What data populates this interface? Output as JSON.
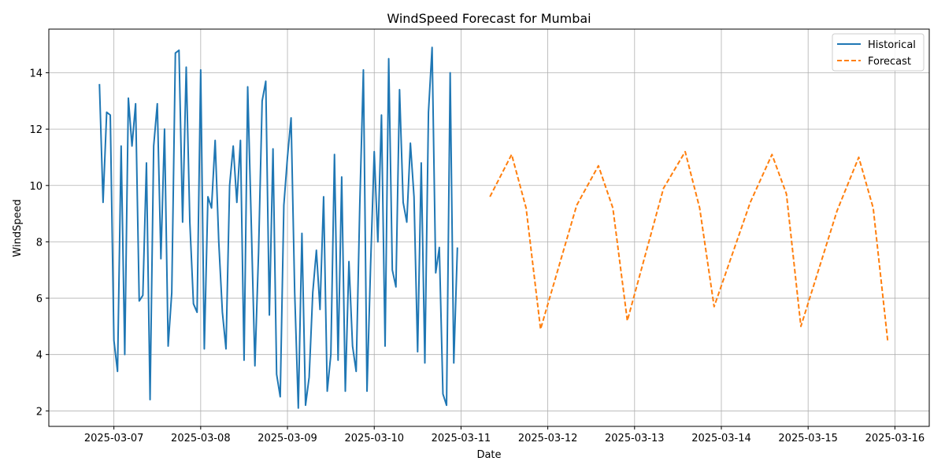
{
  "chart_data": {
    "type": "line",
    "title": "WindSpeed Forecast for Mumbai",
    "xlabel": "Date",
    "ylabel": "WindSpeed",
    "xlim": [
      "2025-03-06 06:00",
      "2025-03-16 09:30"
    ],
    "ylim": [
      1.45,
      15.55
    ],
    "yticks": [
      2,
      4,
      6,
      8,
      10,
      12,
      14
    ],
    "xticks": [
      "2025-03-07",
      "2025-03-08",
      "2025-03-09",
      "2025-03-10",
      "2025-03-11",
      "2025-03-12",
      "2025-03-13",
      "2025-03-14",
      "2025-03-15",
      "2025-03-16"
    ],
    "grid": true,
    "legend_position": "top-right",
    "series": [
      {
        "name": "Historical",
        "color": "#1f77b4",
        "style": "solid",
        "start": "2025-03-06 20:00",
        "step_hours": 1,
        "values": [
          13.6,
          9.4,
          12.6,
          12.5,
          4.5,
          3.4,
          11.4,
          4.0,
          13.1,
          11.4,
          12.9,
          5.9,
          6.1,
          10.8,
          2.4,
          11.4,
          12.9,
          7.4,
          12.0,
          4.3,
          6.2,
          14.7,
          14.8,
          8.7,
          14.2,
          8.7,
          5.8,
          5.5,
          14.1,
          4.2,
          9.6,
          9.2,
          11.6,
          8.0,
          5.5,
          4.2,
          10.0,
          11.4,
          9.4,
          11.6,
          3.8,
          13.5,
          8.6,
          3.6,
          7.6,
          13.0,
          13.7,
          5.4,
          11.3,
          3.3,
          2.5,
          9.3,
          11.0,
          12.4,
          6.2,
          2.1,
          8.3,
          2.2,
          3.2,
          6.2,
          7.7,
          5.6,
          9.6,
          2.7,
          4.0,
          11.1,
          3.8,
          10.3,
          2.7,
          7.3,
          4.3,
          3.4,
          9.3,
          14.1,
          2.7,
          7.2,
          11.2,
          8.0,
          12.5,
          4.3,
          14.5,
          7.0,
          6.4,
          13.4,
          9.4,
          8.7,
          11.5,
          9.6,
          4.1,
          10.8,
          3.7,
          12.6,
          14.9,
          6.9,
          7.8,
          2.6,
          2.2,
          14.0,
          3.7,
          7.8
        ]
      },
      {
        "name": "Forecast",
        "color": "#ff7f0e",
        "style": "dashed",
        "points": [
          [
            "2025-03-11 08:00",
            9.6
          ],
          [
            "2025-03-11 14:00",
            11.1
          ],
          [
            "2025-03-11 18:00",
            9.2
          ],
          [
            "2025-03-11 22:00",
            4.9
          ],
          [
            "2025-03-12 08:00",
            9.3
          ],
          [
            "2025-03-12 14:00",
            10.7
          ],
          [
            "2025-03-12 18:00",
            9.2
          ],
          [
            "2025-03-12 22:00",
            5.2
          ],
          [
            "2025-03-13 08:00",
            9.9
          ],
          [
            "2025-03-13 14:00",
            11.2
          ],
          [
            "2025-03-13 18:00",
            9.2
          ],
          [
            "2025-03-13 22:00",
            5.7
          ],
          [
            "2025-03-14 08:00",
            9.4
          ],
          [
            "2025-03-14 14:00",
            11.1
          ],
          [
            "2025-03-14 18:00",
            9.7
          ],
          [
            "2025-03-14 22:00",
            5.0
          ],
          [
            "2025-03-15 08:00",
            9.1
          ],
          [
            "2025-03-15 14:00",
            11.0
          ],
          [
            "2025-03-15 18:00",
            9.2
          ],
          [
            "2025-03-15 22:00",
            4.5
          ]
        ]
      }
    ]
  }
}
